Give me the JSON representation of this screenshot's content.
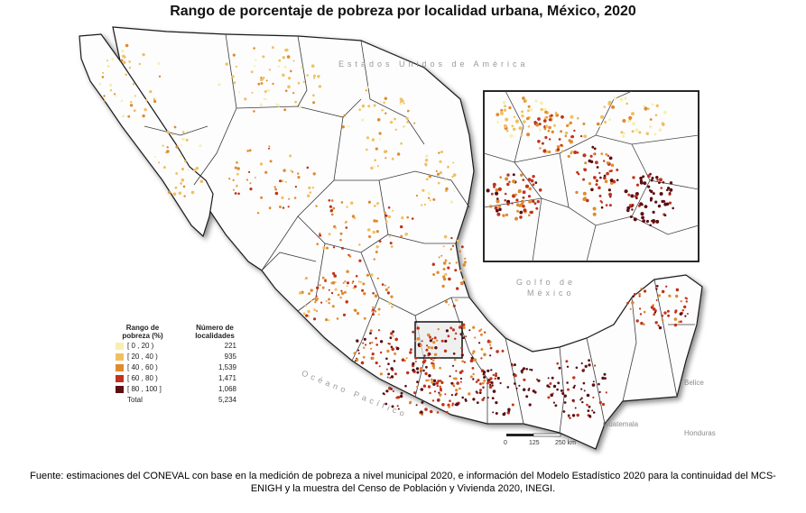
{
  "title": "Rango de porcentaje de pobreza por localidad urbana, México, 2020",
  "labels": {
    "usa": "Estados Unidos de América",
    "gulf": "Golfo de",
    "gulf2": "México",
    "ocean": "Océano Pacífico",
    "guatemala": "Guatemala",
    "belice": "Belice",
    "honduras": "Honduras"
  },
  "legend": {
    "header_range": "Rango de pobreza (%)",
    "header_count": "Número de localidades",
    "items": [
      {
        "label": "[ 0 , 20 )",
        "count": "221",
        "color": "#f7efb0"
      },
      {
        "label": "[ 20 , 40 )",
        "count": "935",
        "color": "#f0c060"
      },
      {
        "label": "[ 40 , 60 )",
        "count": "1,539",
        "color": "#e08a2e"
      },
      {
        "label": "[ 60 , 80 )",
        "count": "1,471",
        "color": "#c0331c"
      },
      {
        "label": "[ 80 , 100 ]",
        "count": "1,068",
        "color": "#5a0f14"
      }
    ],
    "total_label": "Total",
    "total_count": "5,234"
  },
  "scale": {
    "zero": "0",
    "mid": "125",
    "end": "250 km"
  },
  "footer": {
    "line1": "Fuente: estimaciones del CONEVAL con base en la medición de pobreza a nivel municipal 2020, e información del Modelo Estadístico 2020 para la continuidad del MCS-",
    "line2": "ENIGH y la muestra del Censo de Población y Vivienda 2020, INEGI."
  }
}
